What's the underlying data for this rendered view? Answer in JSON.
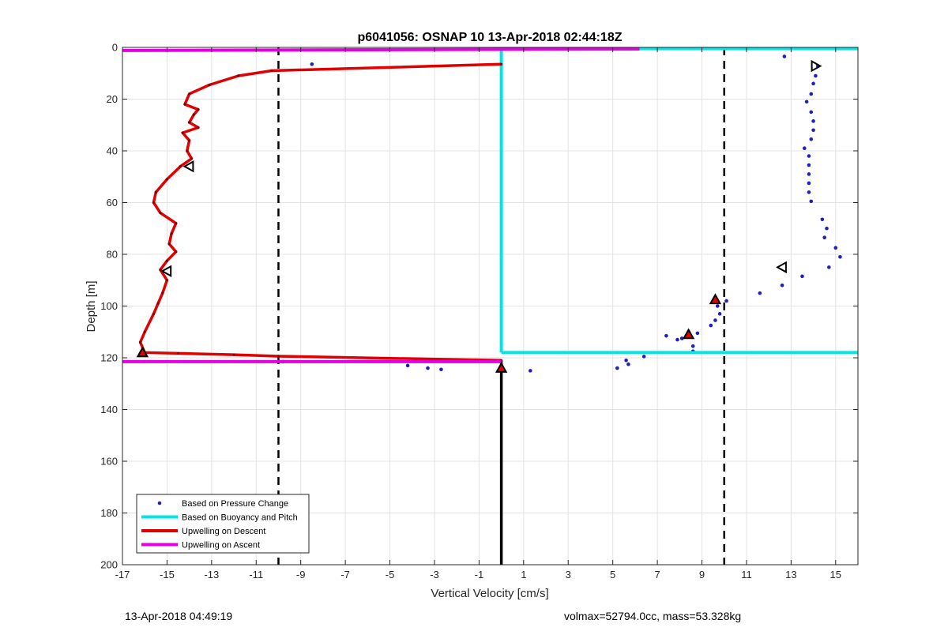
{
  "chart_data": {
    "type": "scatter",
    "title": "p6041056: OSNAP 10 13-Apr-2018 02:44:18Z",
    "xlabel": "Vertical Velocity [cm/s]",
    "ylabel": "Depth [m]",
    "xlim": [
      -17,
      16
    ],
    "ylim": [
      0,
      200
    ],
    "y_reversed": true,
    "grid": true,
    "xticks": [
      -17,
      -15,
      -13,
      -11,
      -9,
      -7,
      -5,
      -3,
      -1,
      1,
      3,
      5,
      7,
      9,
      11,
      13,
      15
    ],
    "yticks": [
      0,
      20,
      40,
      60,
      80,
      100,
      120,
      140,
      160,
      180,
      200
    ],
    "legend_position": "bottom-left",
    "series": [
      {
        "name": "Based on Pressure Change",
        "kind": "points",
        "color": "#1f1fbf",
        "x": [
          12.7,
          14.2,
          14.1,
          14.0,
          13.9,
          13.7,
          13.9,
          14.0,
          14.0,
          13.9,
          13.6,
          13.8,
          13.8,
          13.8,
          13.8,
          13.8,
          13.9,
          14.4,
          14.6,
          14.5,
          15.0,
          15.2,
          14.7,
          13.5,
          12.6,
          11.6,
          10.1,
          9.7,
          9.8,
          9.6,
          9.4,
          8.8,
          8.4,
          7.9,
          7.4,
          8.1,
          8.6,
          8.6,
          6.4,
          5.6,
          5.7,
          5.2,
          1.3,
          -2.7,
          -3.3,
          -4.2,
          -9.8,
          -8.5
        ],
        "y": [
          3.5,
          7.2,
          11,
          14,
          18,
          21,
          25,
          28.5,
          32,
          35.5,
          39,
          42,
          45.5,
          49,
          52.5,
          56,
          59.5,
          66.5,
          70,
          73.5,
          77.5,
          81,
          85,
          88.5,
          92,
          95,
          98,
          100,
          103,
          105.5,
          107.5,
          110.5,
          110,
          113,
          111.5,
          112.5,
          115.5,
          117.5,
          119.5,
          121,
          122.5,
          124,
          125,
          124.5,
          124,
          123,
          121.5,
          6.5
        ]
      },
      {
        "name": "Based on Buoyancy and Pitch",
        "kind": "line",
        "color": "#00e5e5",
        "segments": [
          {
            "x": [
              0,
              16
            ],
            "y": [
              0.5,
              0.5
            ]
          },
          {
            "x": [
              0,
              0
            ],
            "y": [
              0.5,
              118
            ]
          },
          {
            "x": [
              0,
              16
            ],
            "y": [
              118,
              118
            ]
          }
        ]
      },
      {
        "name": "Upwelling on Descent",
        "kind": "line",
        "color": "#e00000",
        "x": [
          0,
          -10.3,
          -11.8,
          -13.1,
          -14.0,
          -14.2,
          -13.6,
          -13.8,
          -14.0,
          -13.6,
          -14.3,
          -14.0,
          -14.1,
          -13.9,
          -14.4,
          -15.0,
          -15.5,
          -15.6,
          -15.3,
          -14.6,
          -14.8,
          -14.9,
          -14.6,
          -15.0,
          -15.3,
          -15.0,
          -15.2,
          -15.4,
          -15.6,
          -16.0,
          -16.2,
          -16.0,
          -14.5,
          -12.0,
          -10.0,
          0
        ],
        "y": [
          6.5,
          9,
          11,
          14.5,
          18,
          22,
          24,
          26,
          29,
          31,
          33,
          36,
          40,
          43,
          46,
          51,
          56,
          60,
          64,
          68,
          72,
          76,
          79,
          82.5,
          86,
          90,
          95,
          99,
          103,
          110,
          114,
          118,
          118.3,
          118.8,
          119.4,
          121
        ]
      },
      {
        "name": "Upwelling on Ascent",
        "kind": "line",
        "color": "#e000e0",
        "segments": [
          {
            "x": [
              -17,
              6.2
            ],
            "y": [
              1.2,
              0.6
            ]
          },
          {
            "x": [
              -17,
              0
            ],
            "y": [
              121.5,
              121.5
            ]
          }
        ]
      }
    ],
    "reference_lines": [
      {
        "orientation": "vertical",
        "x": -10,
        "style": "dashed",
        "color": "#000000"
      },
      {
        "orientation": "vertical",
        "x": 10,
        "style": "dashed",
        "color": "#000000"
      },
      {
        "orientation": "vertical",
        "x": 0,
        "y_from": 121,
        "y_to": 200,
        "style": "solid",
        "color": "#000000"
      }
    ],
    "markers": [
      {
        "shape": "triangle-right",
        "x": 14.1,
        "y": 7.2,
        "fill": "none",
        "edge": "#000000"
      },
      {
        "shape": "triangle-left",
        "x": -14.0,
        "y": 46,
        "fill": "none",
        "edge": "#000000"
      },
      {
        "shape": "triangle-left",
        "x": -15.0,
        "y": 86.5,
        "fill": "none",
        "edge": "#000000"
      },
      {
        "shape": "triangle-left",
        "x": 12.6,
        "y": 85,
        "fill": "none",
        "edge": "#000000"
      },
      {
        "shape": "triangle-up",
        "x": -16.1,
        "y": 118,
        "fill": "#e00000",
        "edge": "#000000"
      },
      {
        "shape": "triangle-up",
        "x": 9.6,
        "y": 97.5,
        "fill": "#e00000",
        "edge": "#000000"
      },
      {
        "shape": "triangle-up",
        "x": 8.4,
        "y": 111,
        "fill": "#e00000",
        "edge": "#000000"
      },
      {
        "shape": "triangle-up",
        "x": 0,
        "y": 124,
        "fill": "#e00000",
        "edge": "#000000"
      }
    ]
  },
  "footer": {
    "left": "13-Apr-2018 04:49:19",
    "right": "volmax=52794.0cc, mass=53.328kg"
  }
}
